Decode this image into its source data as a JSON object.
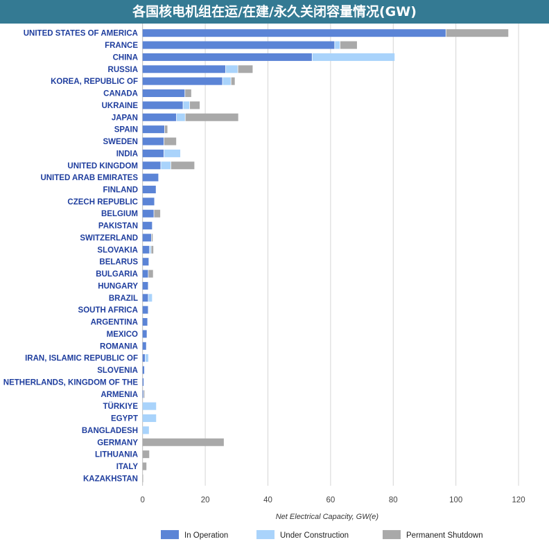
{
  "title": "各国核电机组在运/在建/永久关闭容量情况(GW)",
  "chart_data": {
    "type": "bar",
    "orientation": "horizontal",
    "stacked": true,
    "title": "各国核电机组在运/在建/永久关闭容量情况(GW)",
    "xlabel": "Net Electrical Capacity, GW(e)",
    "ylabel": "",
    "xlim": [
      0,
      120
    ],
    "xticks": [
      "0",
      "20",
      "40",
      "60",
      "80",
      "100",
      "120"
    ],
    "grid": true,
    "legend_position": "bottom",
    "categories": [
      "UNITED STATES OF AMERICA",
      "FRANCE",
      "CHINA",
      "RUSSIA",
      "KOREA, REPUBLIC OF",
      "CANADA",
      "UKRAINE",
      "JAPAN",
      "SPAIN",
      "SWEDEN",
      "INDIA",
      "UNITED KINGDOM",
      "UNITED ARAB EMIRATES",
      "FINLAND",
      "CZECH REPUBLIC",
      "BELGIUM",
      "PAKISTAN",
      "SWITZERLAND",
      "SLOVAKIA",
      "BELARUS",
      "BULGARIA",
      "HUNGARY",
      "BRAZIL",
      "SOUTH AFRICA",
      "ARGENTINA",
      "MEXICO",
      "ROMANIA",
      "IRAN, ISLAMIC REPUBLIC OF",
      "SLOVENIA",
      "NETHERLANDS, KINGDOM OF THE",
      "ARMENIA",
      "TÜRKIYE",
      "EGYPT",
      "BANGLADESH",
      "GERMANY",
      "LITHUANIA",
      "ITALY",
      "KAZAKHSTAN"
    ],
    "series": [
      {
        "name": "In Operation",
        "color": "#5b84d6",
        "values": [
          96.9,
          61.4,
          54.2,
          26.6,
          25.6,
          13.6,
          13.0,
          10.9,
          7.1,
          6.9,
          6.9,
          5.9,
          5.2,
          4.4,
          3.9,
          3.7,
          3.2,
          2.9,
          2.3,
          2.1,
          1.9,
          1.9,
          1.9,
          1.9,
          1.7,
          1.5,
          1.3,
          0.9,
          0.7,
          0.5,
          0.4,
          0,
          0,
          0,
          0,
          0,
          0,
          0
        ]
      },
      {
        "name": "Under Construction",
        "color": "#a9d3fb",
        "values": [
          0,
          1.7,
          26.4,
          3.9,
          2.7,
          0,
          2.1,
          2.8,
          0,
          0,
          5.3,
          3.2,
          0,
          0,
          0,
          0,
          0,
          0,
          0.5,
          0,
          0,
          0,
          1.3,
          0,
          0,
          0,
          0,
          1.1,
          0,
          0,
          0,
          4.5,
          4.5,
          2.2,
          0,
          0,
          0,
          0
        ]
      },
      {
        "name": "Permanent Shutdown",
        "color": "#a9a9a9",
        "values": [
          20.0,
          5.5,
          0,
          4.8,
          1.3,
          2.1,
          3.3,
          17.0,
          1.0,
          4.0,
          0,
          7.6,
          0,
          0,
          0,
          2.1,
          0,
          0.5,
          0.8,
          0,
          1.6,
          0,
          0,
          0,
          0,
          0,
          0,
          0,
          0,
          0,
          0.4,
          0,
          0,
          0,
          26.1,
          2.3,
          1.4,
          0.1
        ]
      }
    ]
  }
}
